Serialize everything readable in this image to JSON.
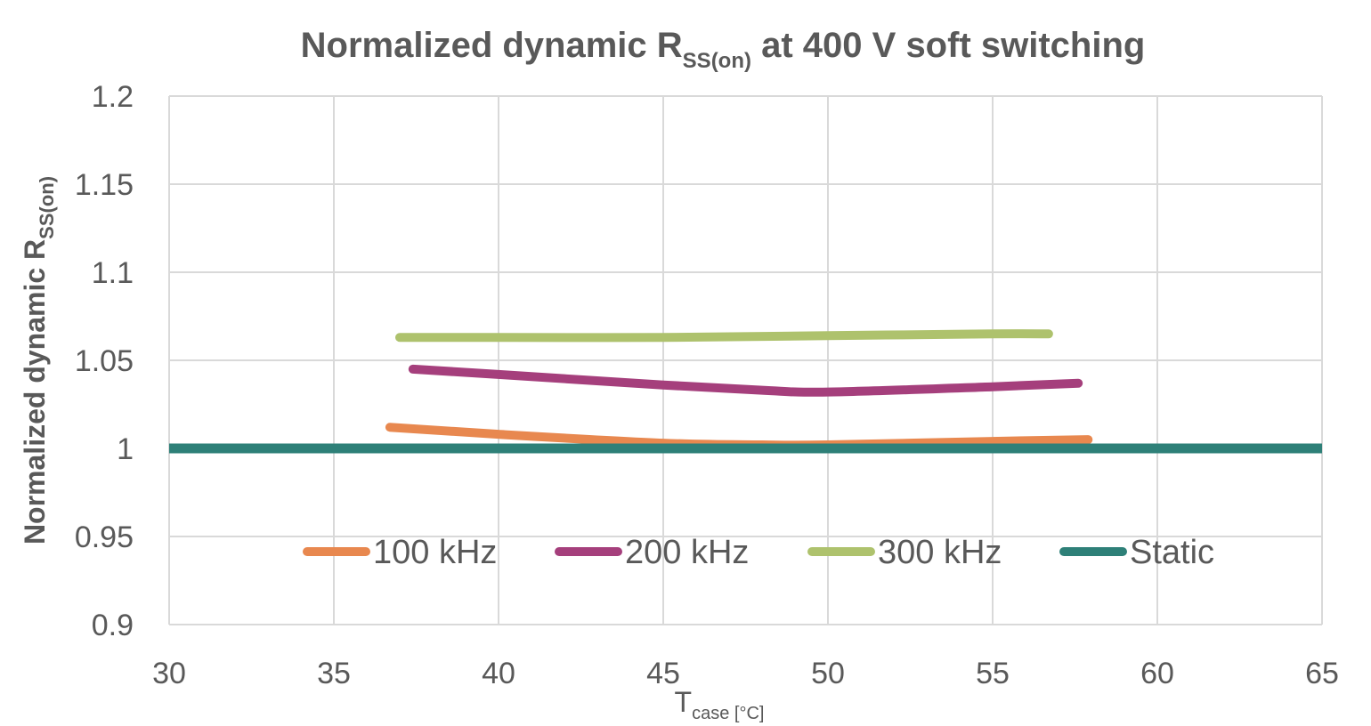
{
  "chart_data": {
    "type": "line",
    "title": {
      "pre": "Normalized dynamic R",
      "sub": "SS(on)",
      "post": " at 400 V soft switching"
    },
    "ylabel": {
      "pre": "Normalized dynamic R",
      "sub": "SS(on)"
    },
    "xlabel": {
      "pre": "T",
      "sub": "case [°C]"
    },
    "xlim": [
      30,
      65
    ],
    "ylim": [
      0.9,
      1.2
    ],
    "xticks": [
      "30",
      "35",
      "40",
      "45",
      "50",
      "55",
      "60",
      "65"
    ],
    "yticks": [
      "0.9",
      "0.95",
      "1",
      "1.05",
      "1.1",
      "1.15",
      "1.2"
    ],
    "xtick_values": [
      30,
      35,
      40,
      45,
      50,
      55,
      60,
      65
    ],
    "ytick_values": [
      0.9,
      0.95,
      1.0,
      1.05,
      1.1,
      1.15,
      1.2
    ],
    "grid": true,
    "legend_position": "bottom-inside",
    "series": [
      {
        "name": "100 kHz",
        "color": "#E8884F",
        "x": [
          36.7,
          40,
          45,
          48,
          50,
          55,
          57.9
        ],
        "y": [
          1.012,
          1.008,
          1.003,
          1.002,
          1.002,
          1.004,
          1.005
        ]
      },
      {
        "name": "200 kHz",
        "color": "#A53F7C",
        "x": [
          37.4,
          40,
          45,
          48,
          50,
          55,
          57.6
        ],
        "y": [
          1.045,
          1.042,
          1.036,
          1.033,
          1.032,
          1.035,
          1.037
        ]
      },
      {
        "name": "300 kHz",
        "color": "#AEC26D",
        "x": [
          37.0,
          40,
          45,
          50,
          55,
          56.7
        ],
        "y": [
          1.063,
          1.063,
          1.063,
          1.064,
          1.065,
          1.065
        ]
      },
      {
        "name": "Static",
        "color": "#2E8078",
        "x": [
          30,
          65
        ],
        "y": [
          1.0,
          1.0
        ]
      }
    ]
  }
}
